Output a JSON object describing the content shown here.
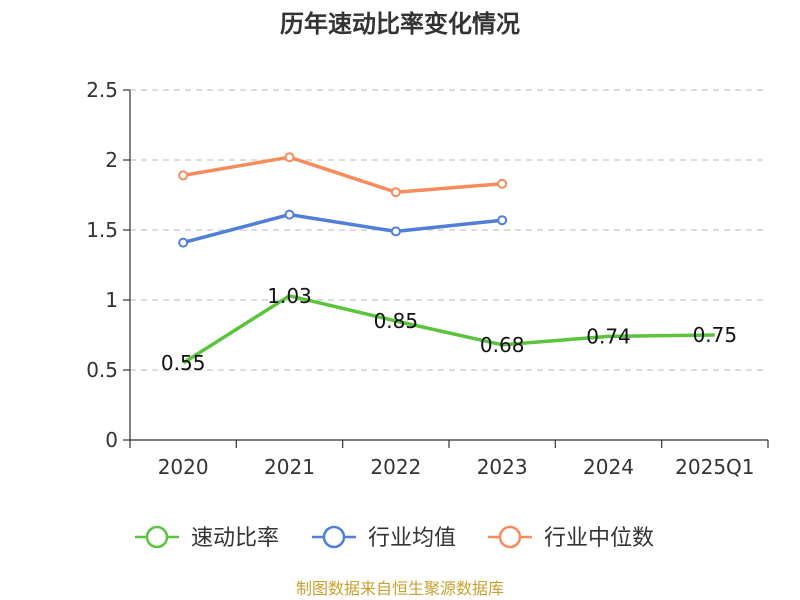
{
  "chart_data": {
    "type": "line",
    "title": "历年速动比率变化情况",
    "categories": [
      "2020",
      "2021",
      "2022",
      "2023",
      "2024",
      "2025Q1"
    ],
    "ylim": [
      0,
      2.5
    ],
    "yticks": [
      "0",
      "0.5",
      "1",
      "1.5",
      "2",
      "2.5"
    ],
    "grid": true,
    "legend_position": "bottom",
    "series": [
      {
        "name": "速动比率",
        "color": "#5bc43d",
        "values": [
          0.55,
          1.03,
          0.85,
          0.68,
          0.74,
          0.75
        ],
        "labels": [
          "0.55",
          "1.03",
          "0.85",
          "0.68",
          "0.74",
          "0.75"
        ]
      },
      {
        "name": "行业均值",
        "color": "#4f7fd8",
        "values": [
          1.41,
          1.61,
          1.49,
          1.57,
          null,
          null
        ]
      },
      {
        "name": "行业中位数",
        "color": "#f68c5b",
        "values": [
          1.89,
          2.02,
          1.77,
          1.83,
          null,
          null
        ]
      }
    ],
    "source": "制图数据来自恒生聚源数据库"
  }
}
